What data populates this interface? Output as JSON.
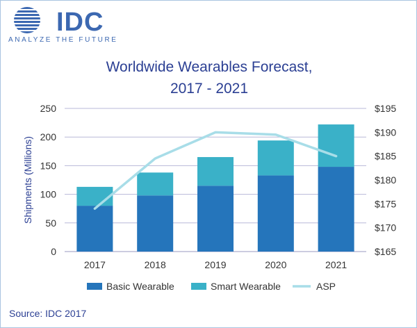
{
  "logo": {
    "name": "IDC",
    "tagline": "ANALYZE THE FUTURE"
  },
  "title_line1": "Worldwide Wearables Forecast,",
  "title_line2": "2017 - 2021",
  "source": "Source: IDC 2017",
  "colors": {
    "basic": "#2575bb",
    "smart": "#3ab1c8",
    "asp": "#a8dde8",
    "grid": "#b8b8d8",
    "title": "#2b3f93"
  },
  "chart_data": {
    "type": "bar",
    "stacked": true,
    "title": "Worldwide Wearables Forecast, 2017 - 2021",
    "categories": [
      "2017",
      "2018",
      "2019",
      "2020",
      "2021"
    ],
    "series": [
      {
        "name": "Basic Wearable",
        "axis": "left",
        "values": [
          80,
          98,
          115,
          133,
          148
        ]
      },
      {
        "name": "Smart Wearable",
        "axis": "left",
        "values": [
          33,
          40,
          50,
          61,
          74
        ]
      },
      {
        "name": "ASP",
        "type": "line",
        "axis": "right",
        "values": [
          174,
          184.5,
          190,
          189.5,
          185
        ]
      }
    ],
    "ylabel": "Shipments (Millions)",
    "ylim": [
      0,
      250
    ],
    "y_ticks": [
      "0",
      "50",
      "100",
      "150",
      "200",
      "250"
    ],
    "y2lim": [
      165,
      195
    ],
    "y2_ticks": [
      "$165",
      "$170",
      "$175",
      "$180",
      "$185",
      "$190",
      "$195"
    ],
    "grid": true,
    "legend": "bottom"
  }
}
